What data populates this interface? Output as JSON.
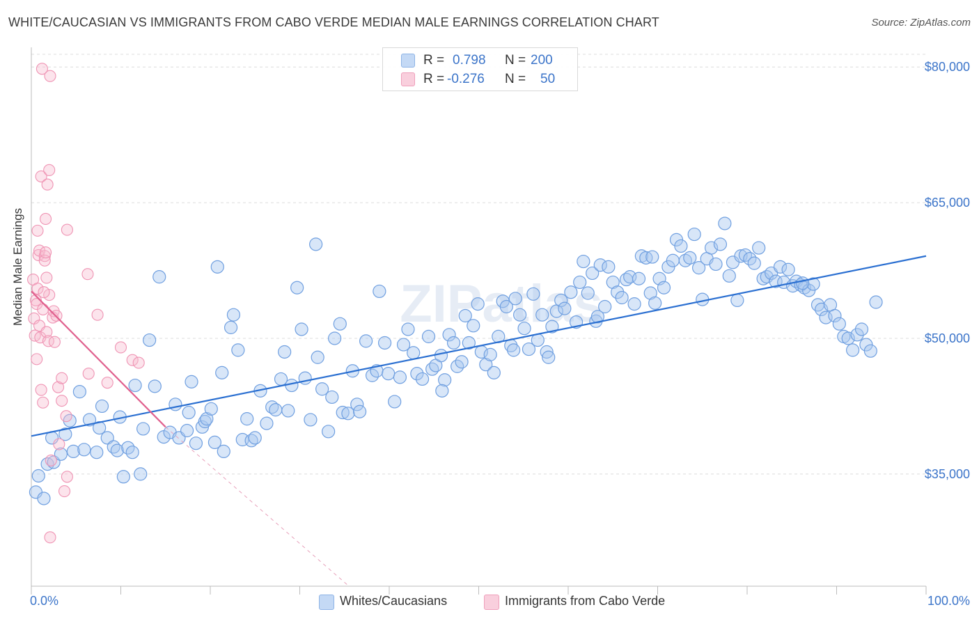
{
  "header": {
    "title": "WHITE/CAUCASIAN VS IMMIGRANTS FROM CABO VERDE MEDIAN MALE EARNINGS CORRELATION CHART",
    "source": "Source: ZipAtlas.com"
  },
  "stats_box": {
    "rows": [
      {
        "r_label": "R =",
        "r_value": "0.798",
        "n_label": "N =",
        "n_value": "200",
        "color": "#9dc0ef"
      },
      {
        "r_label": "R =",
        "r_value": "-0.276",
        "n_label": "N =",
        "n_value": "50",
        "color": "#f5b0c7"
      }
    ]
  },
  "legend": {
    "items": [
      {
        "label": "Whites/Caucasians",
        "color": "#9dc0ef"
      },
      {
        "label": "Immigrants from Cabo Verde",
        "color": "#f5b0c7"
      }
    ]
  },
  "chart_data": {
    "type": "scatter",
    "title": "WHITE/CAUCASIAN VS IMMIGRANTS FROM CABO VERDE MEDIAN MALE EARNINGS CORRELATION CHART",
    "ylabel": "Median Male Earnings",
    "x_tick_labels": [
      "0.0%",
      "100.0%"
    ],
    "y_tick_labels": [
      "$35,000",
      "$50,000",
      "$65,000",
      "$80,000"
    ],
    "y_ticks": [
      35000,
      50000,
      65000,
      80000
    ],
    "xlim": [
      0,
      100
    ],
    "ylim": [
      22600,
      81400
    ],
    "grid": "horizontal dashed",
    "watermark": "ZIPatlas",
    "colors": {
      "whites": "#6f9fe0",
      "whites_line": "#2a6fd1",
      "cabo": "#ef93b3",
      "cabo_line": "#e0608e",
      "axis_label": "#3b74c9"
    },
    "series": [
      {
        "name": "Whites/Caucasians",
        "trend": {
          "x": [
            0,
            100
          ],
          "y": [
            39200,
            59100
          ]
        },
        "points": [
          [
            0.5,
            33000
          ],
          [
            0.8,
            34800
          ],
          [
            1.4,
            32300
          ],
          [
            1.8,
            36100
          ],
          [
            2.3,
            39000
          ],
          [
            2.5,
            36300
          ],
          [
            3.3,
            37200
          ],
          [
            3.8,
            39400
          ],
          [
            4.3,
            40900
          ],
          [
            4.7,
            37500
          ],
          [
            5.4,
            44100
          ],
          [
            5.9,
            37700
          ],
          [
            6.5,
            41000
          ],
          [
            7.3,
            37400
          ],
          [
            7.6,
            40100
          ],
          [
            7.9,
            42500
          ],
          [
            8.5,
            39000
          ],
          [
            9.2,
            38000
          ],
          [
            9.6,
            37600
          ],
          [
            9.9,
            41300
          ],
          [
            10.3,
            34700
          ],
          [
            10.8,
            37900
          ],
          [
            11.3,
            37400
          ],
          [
            11.6,
            44800
          ],
          [
            12.2,
            35000
          ],
          [
            12.5,
            40000
          ],
          [
            13.2,
            49800
          ],
          [
            13.8,
            44700
          ],
          [
            14.3,
            56800
          ],
          [
            14.8,
            39100
          ],
          [
            15.5,
            39600
          ],
          [
            16.1,
            42700
          ],
          [
            16.5,
            39000
          ],
          [
            17.4,
            39800
          ],
          [
            17.6,
            41800
          ],
          [
            17.9,
            45200
          ],
          [
            18.4,
            38400
          ],
          [
            19.1,
            40200
          ],
          [
            19.4,
            40800
          ],
          [
            19.6,
            41100
          ],
          [
            20.1,
            42200
          ],
          [
            20.5,
            38500
          ],
          [
            20.8,
            57900
          ],
          [
            21.3,
            46200
          ],
          [
            21.5,
            37500
          ],
          [
            22.3,
            51200
          ],
          [
            22.6,
            52600
          ],
          [
            23.1,
            48700
          ],
          [
            23.6,
            38800
          ],
          [
            24.1,
            41100
          ],
          [
            24.6,
            38700
          ],
          [
            25.0,
            39000
          ],
          [
            25.6,
            44200
          ],
          [
            26.3,
            40600
          ],
          [
            26.9,
            42400
          ],
          [
            27.3,
            42100
          ],
          [
            27.9,
            45500
          ],
          [
            28.3,
            48500
          ],
          [
            28.7,
            42000
          ],
          [
            29.1,
            44800
          ],
          [
            29.7,
            55600
          ],
          [
            30.2,
            51000
          ],
          [
            30.6,
            45600
          ],
          [
            31.2,
            41000
          ],
          [
            31.8,
            60400
          ],
          [
            32.0,
            47900
          ],
          [
            32.5,
            44400
          ],
          [
            33.2,
            39700
          ],
          [
            33.6,
            43500
          ],
          [
            33.9,
            50000
          ],
          [
            34.5,
            51600
          ],
          [
            34.8,
            41800
          ],
          [
            35.4,
            41700
          ],
          [
            35.9,
            46400
          ],
          [
            36.4,
            42700
          ],
          [
            36.7,
            41900
          ],
          [
            37.4,
            49700
          ],
          [
            38.1,
            45900
          ],
          [
            38.6,
            46400
          ],
          [
            38.9,
            55200
          ],
          [
            39.5,
            49500
          ],
          [
            39.9,
            46100
          ],
          [
            40.6,
            43000
          ],
          [
            41.2,
            45700
          ],
          [
            41.6,
            49300
          ],
          [
            42.1,
            51000
          ],
          [
            42.7,
            48400
          ],
          [
            43.1,
            46100
          ],
          [
            43.7,
            45500
          ],
          [
            44.4,
            50200
          ],
          [
            44.8,
            46600
          ],
          [
            45.2,
            47000
          ],
          [
            45.8,
            48100
          ],
          [
            46.2,
            45400
          ],
          [
            46.7,
            50400
          ],
          [
            47.2,
            49500
          ],
          [
            47.6,
            46900
          ],
          [
            48.1,
            47400
          ],
          [
            48.5,
            52500
          ],
          [
            48.9,
            49500
          ],
          [
            49.4,
            51400
          ],
          [
            49.9,
            53800
          ],
          [
            50.3,
            48500
          ],
          [
            50.8,
            47100
          ],
          [
            51.3,
            48200
          ],
          [
            51.7,
            46200
          ],
          [
            52.2,
            50200
          ],
          [
            52.7,
            54100
          ],
          [
            53.1,
            53500
          ],
          [
            53.6,
            49200
          ],
          [
            54.1,
            54400
          ],
          [
            54.6,
            52600
          ],
          [
            55.1,
            51100
          ],
          [
            55.6,
            48800
          ],
          [
            56.1,
            54900
          ],
          [
            56.6,
            49800
          ],
          [
            57.1,
            52600
          ],
          [
            57.6,
            48500
          ],
          [
            57.8,
            47900
          ],
          [
            58.2,
            51300
          ],
          [
            58.7,
            53000
          ],
          [
            59.2,
            54200
          ],
          [
            59.6,
            53300
          ],
          [
            60.3,
            55100
          ],
          [
            60.9,
            51800
          ],
          [
            61.3,
            56200
          ],
          [
            61.7,
            58500
          ],
          [
            62.2,
            55000
          ],
          [
            62.7,
            57200
          ],
          [
            63.1,
            51900
          ],
          [
            63.6,
            58100
          ],
          [
            64.1,
            53500
          ],
          [
            64.5,
            57900
          ],
          [
            65.0,
            56200
          ],
          [
            65.5,
            55100
          ],
          [
            66.0,
            54500
          ],
          [
            66.5,
            56500
          ],
          [
            66.9,
            56800
          ],
          [
            67.4,
            53800
          ],
          [
            67.9,
            56600
          ],
          [
            68.2,
            59100
          ],
          [
            68.7,
            58900
          ],
          [
            69.2,
            55000
          ],
          [
            69.7,
            53900
          ],
          [
            70.2,
            56600
          ],
          [
            70.7,
            55600
          ],
          [
            71.2,
            57900
          ],
          [
            71.7,
            58600
          ],
          [
            72.1,
            60900
          ],
          [
            72.6,
            60200
          ],
          [
            73.1,
            58600
          ],
          [
            73.6,
            58900
          ],
          [
            74.1,
            61500
          ],
          [
            74.6,
            57800
          ],
          [
            75.0,
            54300
          ],
          [
            75.5,
            58800
          ],
          [
            76.0,
            60000
          ],
          [
            76.5,
            58200
          ],
          [
            77.0,
            60400
          ],
          [
            77.5,
            62700
          ],
          [
            78.0,
            56900
          ],
          [
            78.4,
            58400
          ],
          [
            78.9,
            54200
          ],
          [
            79.3,
            59100
          ],
          [
            79.8,
            59200
          ],
          [
            80.3,
            58800
          ],
          [
            80.8,
            58300
          ],
          [
            81.3,
            60000
          ],
          [
            81.8,
            56600
          ],
          [
            82.2,
            56800
          ],
          [
            82.7,
            57200
          ],
          [
            83.2,
            56300
          ],
          [
            83.7,
            57900
          ],
          [
            84.1,
            56200
          ],
          [
            84.6,
            57600
          ],
          [
            85.1,
            55800
          ],
          [
            85.5,
            56300
          ],
          [
            86.0,
            55900
          ],
          [
            86.4,
            55600
          ],
          [
            86.9,
            55300
          ],
          [
            87.4,
            56000
          ],
          [
            87.9,
            53700
          ],
          [
            88.3,
            53200
          ],
          [
            88.8,
            52300
          ],
          [
            89.3,
            53700
          ],
          [
            89.8,
            52500
          ],
          [
            90.3,
            51600
          ],
          [
            90.8,
            50200
          ],
          [
            91.3,
            50000
          ],
          [
            91.8,
            48700
          ],
          [
            92.3,
            50400
          ],
          [
            92.8,
            51000
          ],
          [
            93.3,
            49300
          ],
          [
            93.8,
            48600
          ],
          [
            94.4,
            54000
          ],
          [
            45.9,
            44200
          ],
          [
            53.9,
            48700
          ],
          [
            63.3,
            52400
          ],
          [
            69.4,
            59000
          ],
          [
            86.2,
            56100
          ]
        ]
      },
      {
        "name": "Immigrants from Cabo Verde",
        "trend": {
          "x": [
            0,
            15
          ],
          "y": [
            55200,
            40200
          ]
        },
        "trend_dashed": {
          "x": [
            15,
            35.5
          ],
          "y": [
            40200,
            22600
          ]
        },
        "points": [
          [
            0.2,
            56500
          ],
          [
            0.3,
            52200
          ],
          [
            0.4,
            50300
          ],
          [
            0.5,
            54200
          ],
          [
            0.6,
            53800
          ],
          [
            0.6,
            47700
          ],
          [
            0.7,
            55500
          ],
          [
            0.7,
            61900
          ],
          [
            0.8,
            59200
          ],
          [
            0.9,
            51400
          ],
          [
            0.9,
            59700
          ],
          [
            1.0,
            50100
          ],
          [
            1.1,
            67900
          ],
          [
            1.1,
            44300
          ],
          [
            1.2,
            79800
          ],
          [
            1.3,
            42900
          ],
          [
            1.3,
            53200
          ],
          [
            1.5,
            59100
          ],
          [
            1.5,
            58600
          ],
          [
            1.6,
            59500
          ],
          [
            1.6,
            63200
          ],
          [
            1.7,
            56700
          ],
          [
            1.7,
            50700
          ],
          [
            1.8,
            67000
          ],
          [
            1.9,
            49700
          ],
          [
            2.0,
            68600
          ],
          [
            2.0,
            54800
          ],
          [
            2.1,
            79000
          ],
          [
            2.2,
            36500
          ],
          [
            2.1,
            28000
          ],
          [
            2.4,
            52300
          ],
          [
            2.5,
            53000
          ],
          [
            2.6,
            49600
          ],
          [
            2.8,
            52500
          ],
          [
            3.0,
            44600
          ],
          [
            3.1,
            38300
          ],
          [
            3.4,
            43100
          ],
          [
            3.4,
            45600
          ],
          [
            3.7,
            33100
          ],
          [
            3.9,
            41400
          ],
          [
            4.0,
            62000
          ],
          [
            4.0,
            34700
          ],
          [
            6.3,
            57100
          ],
          [
            6.4,
            46100
          ],
          [
            7.4,
            52600
          ],
          [
            8.5,
            45100
          ],
          [
            10.0,
            49000
          ],
          [
            11.3,
            47600
          ],
          [
            12.0,
            47300
          ],
          [
            1.4,
            55100
          ]
        ]
      }
    ]
  }
}
